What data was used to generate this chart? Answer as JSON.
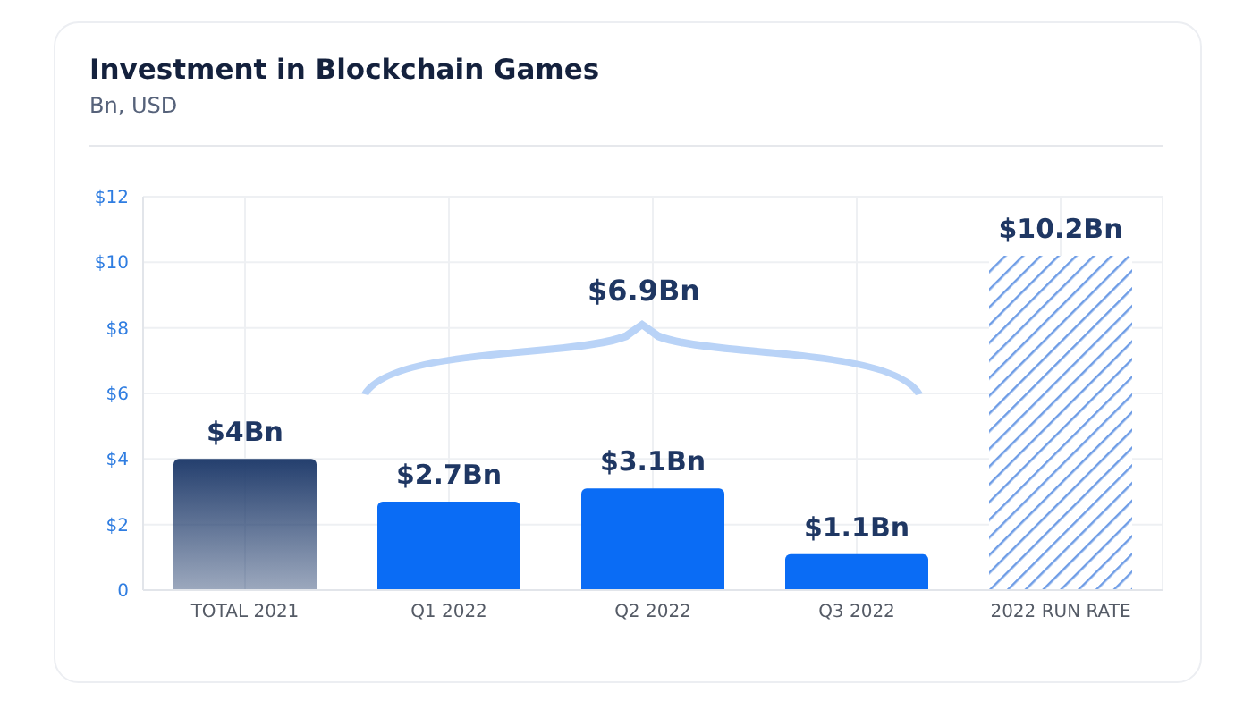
{
  "chart_data": {
    "type": "bar",
    "title": "Investment in Blockchain Games",
    "subtitle": "Bn, USD",
    "categories": [
      "TOTAL 2021",
      "Q1 2022",
      "Q2 2022",
      "Q3 2022",
      "2022 RUN RATE"
    ],
    "values": [
      4,
      2.7,
      3.1,
      1.1,
      10.2
    ],
    "colors": [
      "#243f6e",
      "#0a6cf5",
      "#0a6cf5",
      "#0a6cf5",
      "#6f9de6"
    ],
    "value_labels": [
      "$4Bn",
      "$2.7Bn",
      "$3.1Bn",
      "$1.1Bn",
      "$10.2Bn"
    ],
    "annotations": [
      "$6.9Bn"
    ],
    "ylim": [
      0,
      12
    ],
    "yticks": [
      {
        "value": 0,
        "label": "0"
      },
      {
        "value": 2,
        "label": "$2"
      },
      {
        "value": 4,
        "label": "$4"
      },
      {
        "value": 6,
        "label": "$6"
      },
      {
        "value": 8,
        "label": "$8"
      },
      {
        "value": 10,
        "label": "$10"
      },
      {
        "value": 12,
        "label": "$12"
      }
    ],
    "grid": true
  }
}
